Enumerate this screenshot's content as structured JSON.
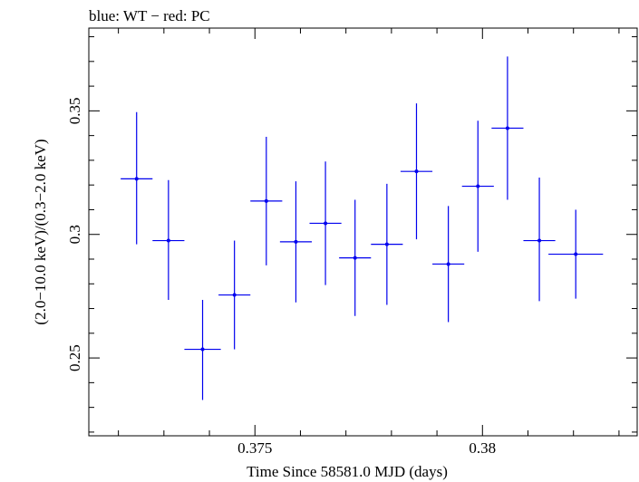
{
  "header_note": "blue: WT − red: PC",
  "chart_data": {
    "type": "scatter",
    "title": "blue: WT − red: PC",
    "xlabel": "Time Since 58581.0 MJD (days)",
    "ylabel": "(2.0−10.0 keV)/(0.3−2.0 keV)",
    "xlim": [
      0.37135,
      0.3834
    ],
    "ylim": [
      0.2185,
      0.3835
    ],
    "xticks": [
      0.375,
      0.38
    ],
    "xtick_labels": [
      "0.375",
      "0.38"
    ],
    "yticks": [
      0.25,
      0.3,
      0.35
    ],
    "ytick_labels": [
      "0.25",
      "0.3",
      "0.35"
    ],
    "grid": false,
    "series": [
      {
        "name": "WT",
        "color": "#0000ee",
        "points": [
          {
            "x": 0.3724,
            "xerr": 0.00035,
            "y": 0.3225,
            "yerr_low": 0.0265,
            "yerr_high": 0.027
          },
          {
            "x": 0.3731,
            "xerr": 0.00035,
            "y": 0.2975,
            "yerr_low": 0.024,
            "yerr_high": 0.0245
          },
          {
            "x": 0.37385,
            "xerr": 0.0004,
            "y": 0.2535,
            "yerr_low": 0.0205,
            "yerr_high": 0.02
          },
          {
            "x": 0.37455,
            "xerr": 0.00035,
            "y": 0.2755,
            "yerr_low": 0.022,
            "yerr_high": 0.022
          },
          {
            "x": 0.37525,
            "xerr": 0.00035,
            "y": 0.3135,
            "yerr_low": 0.026,
            "yerr_high": 0.026
          },
          {
            "x": 0.3759,
            "xerr": 0.00035,
            "y": 0.297,
            "yerr_low": 0.0245,
            "yerr_high": 0.0245
          },
          {
            "x": 0.37655,
            "xerr": 0.00035,
            "y": 0.3045,
            "yerr_low": 0.025,
            "yerr_high": 0.025
          },
          {
            "x": 0.3772,
            "xerr": 0.00035,
            "y": 0.2905,
            "yerr_low": 0.0235,
            "yerr_high": 0.0235
          },
          {
            "x": 0.3779,
            "xerr": 0.00035,
            "y": 0.296,
            "yerr_low": 0.0245,
            "yerr_high": 0.0245
          },
          {
            "x": 0.37855,
            "xerr": 0.00035,
            "y": 0.3255,
            "yerr_low": 0.0275,
            "yerr_high": 0.0275
          },
          {
            "x": 0.37925,
            "xerr": 0.00035,
            "y": 0.288,
            "yerr_low": 0.0235,
            "yerr_high": 0.0235
          },
          {
            "x": 0.3799,
            "xerr": 0.00035,
            "y": 0.3195,
            "yerr_low": 0.0265,
            "yerr_high": 0.0265
          },
          {
            "x": 0.38055,
            "xerr": 0.00035,
            "y": 0.343,
            "yerr_low": 0.029,
            "yerr_high": 0.029
          },
          {
            "x": 0.38125,
            "xerr": 0.00035,
            "y": 0.2975,
            "yerr_low": 0.0245,
            "yerr_high": 0.0255
          },
          {
            "x": 0.38205,
            "xerr": 0.0006,
            "y": 0.292,
            "yerr_low": 0.018,
            "yerr_high": 0.018
          }
        ]
      }
    ]
  }
}
